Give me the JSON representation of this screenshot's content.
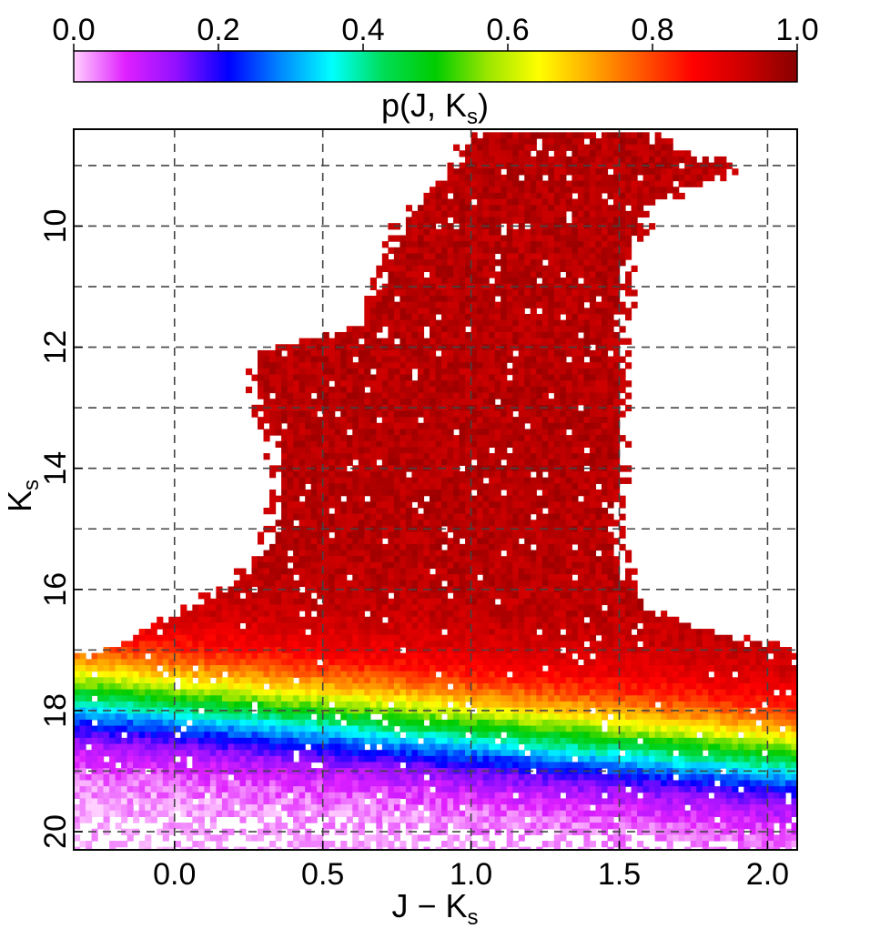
{
  "chart_data": {
    "type": "heatmap",
    "title": "",
    "xlabel": {
      "main": "J − K",
      "sub": "s"
    },
    "ylabel": {
      "main": "K",
      "sub": "s"
    },
    "xlim": [
      -0.34,
      2.1
    ],
    "ylim": [
      20.3,
      8.4
    ],
    "x_ticks": [
      "0.0",
      "0.5",
      "1.0",
      "1.5",
      "2.0"
    ],
    "x_tick_values": [
      0.0,
      0.5,
      1.0,
      1.5,
      2.0
    ],
    "y_ticks": [
      "10",
      "12",
      "14",
      "16",
      "18",
      "20"
    ],
    "y_tick_values": [
      10,
      12,
      14,
      16,
      18,
      20
    ],
    "grid": true,
    "grid_x": [
      0.0,
      0.5,
      1.0,
      1.5,
      2.0
    ],
    "grid_y": [
      9,
      10,
      11,
      12,
      13,
      14,
      15,
      16,
      17,
      18,
      19,
      20
    ],
    "colorbar": {
      "label": {
        "main": "p(J, K",
        "sub": "s",
        "close": ")"
      },
      "ticks": [
        "0.0",
        "0.2",
        "0.4",
        "0.6",
        "0.8",
        "1.0"
      ],
      "tick_values": [
        0.0,
        0.2,
        0.4,
        0.6,
        0.8,
        1.0
      ],
      "range": [
        0.0,
        1.0
      ],
      "colors": [
        "#ffd0ff",
        "#e020ff",
        "#9010ff",
        "#0000ff",
        "#0088ff",
        "#00ffff",
        "#00dd55",
        "#00cc00",
        "#99e600",
        "#ffff00",
        "#ffaa00",
        "#ff5500",
        "#ff0000",
        "#cc0000",
        "#880000"
      ]
    },
    "description_regions": {
      "red_giant_branch_top": {
        "x_range": [
          0.7,
          1.9
        ],
        "y_range": [
          8.5,
          11.5
        ],
        "p": 0.92
      },
      "dense_core": {
        "x_range": [
          0.3,
          1.5
        ],
        "y_range": [
          11.5,
          16.0
        ],
        "p": 0.95
      },
      "transition_band_p": [
        0.9,
        0.8,
        0.65,
        0.5,
        0.35,
        0.2,
        0.05
      ]
    }
  }
}
